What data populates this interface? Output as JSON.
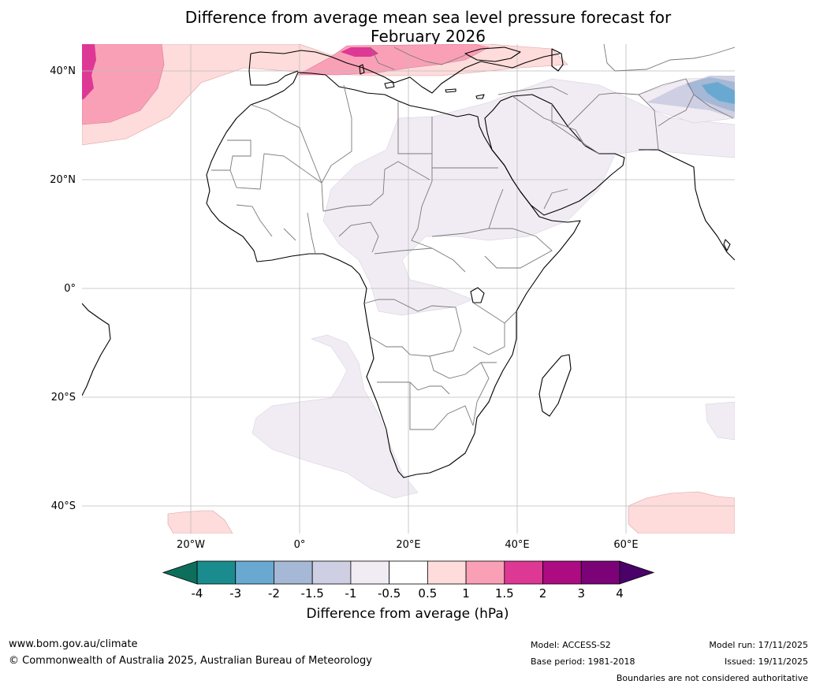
{
  "title": {
    "line1": "Difference from average mean sea level pressure forecast for",
    "line2": "February 2026"
  },
  "map": {
    "projection": "equirectangular",
    "extent": {
      "lon_min": -40,
      "lon_max": 80,
      "lat_min": -45,
      "lat_max": 45
    },
    "lat_ticks": [
      {
        "value": 40,
        "label": "40°N"
      },
      {
        "value": 20,
        "label": "20°N"
      },
      {
        "value": 0,
        "label": "0°"
      },
      {
        "value": -20,
        "label": "20°S"
      },
      {
        "value": -40,
        "label": "40°S"
      }
    ],
    "lon_ticks": [
      {
        "value": -20,
        "label": "20°W"
      },
      {
        "value": 0,
        "label": "0°"
      },
      {
        "value": 20,
        "label": "20°E"
      },
      {
        "value": 40,
        "label": "40°E"
      },
      {
        "value": 60,
        "label": "60°E"
      }
    ]
  },
  "colorbar": {
    "ticks": [
      "-4",
      "-3",
      "-2",
      "-1.5",
      "-1",
      "-0.5",
      "0.5",
      "1",
      "1.5",
      "2",
      "3",
      "4"
    ],
    "colors": [
      "#1b8c8e",
      "#69a9d1",
      "#a5b8d5",
      "#cfcfe3",
      "#f1ecf3",
      "#ffffff",
      "#fddcdb",
      "#f9a0b7",
      "#de3895",
      "#ad0b81",
      "#7b0377"
    ],
    "under_color": "#0e6e5c",
    "over_color": "#4a0168",
    "label": "Difference from average (hPa)"
  },
  "footer": {
    "website": "www.bom.gov.au/climate",
    "copyright": "© Commonwealth of Australia 2025, Australian Bureau of Meteorology",
    "model": "Model: ACCESS-S2",
    "base_period": "Base period: 1981-2018",
    "model_run": "Model run: 17/11/2025",
    "issued": "Issued: 19/11/2025",
    "disclaimer": "Boundaries are not considered authoritative"
  }
}
